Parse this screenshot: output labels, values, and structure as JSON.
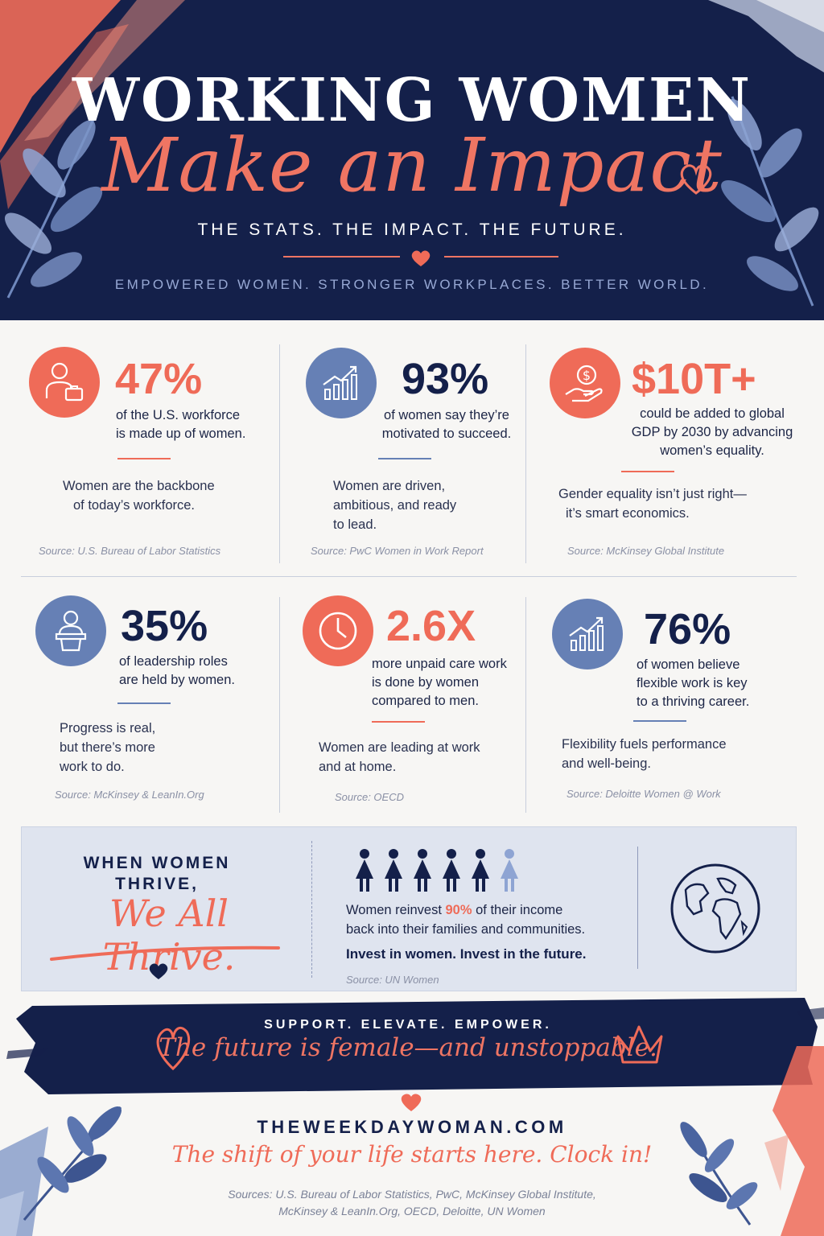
{
  "header": {
    "title": "WORKING WOMEN",
    "script_title": "Make an Impact",
    "tagline": "THE STATS. THE IMPACT. THE FUTURE.",
    "subtitle": "EMPOWERED WOMEN. STRONGER WORKPLACES. BETTER WORLD."
  },
  "stats": [
    {
      "icon": "businesswoman-icon",
      "value": "47%",
      "desc": [
        "of the U.S. workforce",
        "is made up of women."
      ],
      "note": [
        "Women are the backbone",
        "of today’s workforce."
      ],
      "source": "Source: U.S. Bureau of Labor Statistics"
    },
    {
      "icon": "growth-chart-icon",
      "value": "93%",
      "desc": [
        "of women say they’re",
        "motivated to succeed."
      ],
      "note": [
        "Women are driven,",
        "ambitious, and ready",
        "to lead."
      ],
      "source": "Source: PwC Women in Work Report"
    },
    {
      "icon": "dollar-hand-icon",
      "value": "$10T+",
      "desc": [
        "could be added to global",
        "GDP by 2030 by advancing",
        "women’s equality."
      ],
      "note": [
        "Gender equality isn’t just right—",
        "it’s smart economics."
      ],
      "source": "Source: McKinsey Global Institute"
    },
    {
      "icon": "speaker-podium-icon",
      "value": "35%",
      "desc": [
        "of leadership roles",
        "are held by women."
      ],
      "note": [
        "Progress is real,",
        "but there’s more",
        "work to do."
      ],
      "source": "Source: McKinsey & LeanIn.Org"
    },
    {
      "icon": "clock-icon",
      "value": "2.6X",
      "desc": [
        "more unpaid care work",
        "is done by women",
        "compared to men."
      ],
      "note": [
        "Women are leading at work",
        "and at home."
      ],
      "source": "Source: OECD"
    },
    {
      "icon": "growth-chart-icon",
      "value": "76%",
      "desc": [
        "of women believe",
        "flexible work is key",
        "to a thriving career."
      ],
      "note": [
        "Flexibility fuels performance",
        "and well-being."
      ],
      "source": "Source: Deloitte Women @ Work"
    }
  ],
  "thrive": {
    "heading_line1": "WHEN WOMEN",
    "heading_line2": "THRIVE,",
    "script": "We All Thrive.",
    "text_before": "Women reinvest ",
    "highlight": "90%",
    "text_after": " of their income",
    "line2": "back into their families and communities.",
    "bold_line": "Invest in women. Invest in the future.",
    "source": "Source: UN Women"
  },
  "banner": {
    "tagline": "SUPPORT. ELEVATE. EMPOWER.",
    "script": "The future is female—and unstoppable."
  },
  "footer": {
    "site": "THEWEEKDAYWOMAN.COM",
    "slogan": "The shift of your life starts here. Clock in!",
    "sources_line1": "Sources: U.S. Bureau of Labor Statistics, PwC, McKinsey Global Institute,",
    "sources_line2": "McKinsey & LeanIn.Org, OECD, Deloitte, UN Women"
  },
  "colors": {
    "navy": "#14204a",
    "coral": "#ef6b58",
    "blue": "#6680b5",
    "panel": "#dfe4ef"
  }
}
